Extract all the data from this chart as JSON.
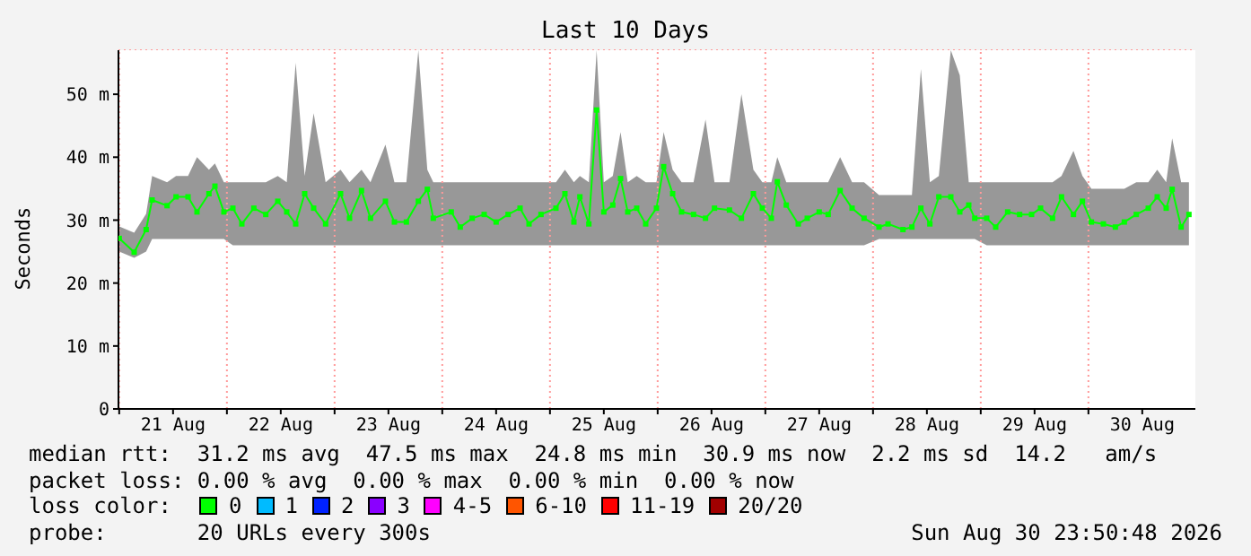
{
  "chart_data": {
    "type": "line",
    "title": "Last 10 Days",
    "ylabel": "Seconds",
    "xlim": [
      "2026-08-20T23:50",
      "2026-08-30T23:50"
    ],
    "xticks": [
      {
        "value": "2026-08-21T00:00",
        "label": null
      },
      {
        "value": "2026-08-21T12:00",
        "label": "21 Aug"
      },
      {
        "value": "2026-08-22T00:00",
        "label": null
      },
      {
        "value": "2026-08-22T12:00",
        "label": "22 Aug"
      },
      {
        "value": "2026-08-23T00:00",
        "label": null
      },
      {
        "value": "2026-08-23T12:00",
        "label": "23 Aug"
      },
      {
        "value": "2026-08-24T00:00",
        "label": null
      },
      {
        "value": "2026-08-24T12:00",
        "label": "24 Aug"
      },
      {
        "value": "2026-08-25T00:00",
        "label": null
      },
      {
        "value": "2026-08-25T12:00",
        "label": "25 Aug"
      },
      {
        "value": "2026-08-26T00:00",
        "label": null
      },
      {
        "value": "2026-08-26T12:00",
        "label": "26 Aug"
      },
      {
        "value": "2026-08-27T00:00",
        "label": null
      },
      {
        "value": "2026-08-27T12:00",
        "label": "27 Aug"
      },
      {
        "value": "2026-08-28T00:00",
        "label": null
      },
      {
        "value": "2026-08-28T12:00",
        "label": "28 Aug"
      },
      {
        "value": "2026-08-29T00:00",
        "label": null
      },
      {
        "value": "2026-08-29T12:00",
        "label": "29 Aug"
      },
      {
        "value": "2026-08-30T00:00",
        "label": null
      },
      {
        "value": "2026-08-30T12:00",
        "label": "30 Aug"
      }
    ],
    "ylim": [
      0,
      57
    ],
    "yticks": [
      0,
      {
        "value": 10,
        "label": "10 m"
      },
      {
        "value": 20,
        "label": "20 m"
      },
      {
        "value": 30,
        "label": "30 m"
      },
      {
        "value": 40,
        "label": "40 m"
      },
      {
        "value": 50,
        "label": "50 m"
      }
    ],
    "grid": true,
    "legend": "bottom",
    "legend_title": "loss color:",
    "marker": "square",
    "x": [
      "2026-08-21T00:00",
      "2026-08-21T03:20",
      "2026-08-21T06:00",
      "2026-08-21T07:20",
      "2026-08-21T10:40",
      "2026-08-21T12:40",
      "2026-08-21T15:20",
      "2026-08-21T17:20",
      "2026-08-21T20:00",
      "2026-08-21T21:20",
      "2026-08-21T23:20",
      "2026-08-22T01:20",
      "2026-08-22T03:20",
      "2026-08-22T06:00",
      "2026-08-22T08:40",
      "2026-08-22T11:20",
      "2026-08-22T13:20",
      "2026-08-22T15:20",
      "2026-08-22T17:20",
      "2026-08-22T19:20",
      "2026-08-22T22:00",
      "2026-08-23T01:20",
      "2026-08-23T03:20",
      "2026-08-23T06:00",
      "2026-08-23T08:00",
      "2026-08-23T11:20",
      "2026-08-23T13:20",
      "2026-08-23T16:00",
      "2026-08-23T18:40",
      "2026-08-23T20:40",
      "2026-08-23T22:00",
      "2026-08-24T02:00",
      "2026-08-24T04:00",
      "2026-08-24T06:40",
      "2026-08-24T09:20",
      "2026-08-24T12:00",
      "2026-08-24T14:40",
      "2026-08-24T17:20",
      "2026-08-24T19:20",
      "2026-08-24T22:00",
      "2026-08-25T01:20",
      "2026-08-25T03:20",
      "2026-08-25T05:20",
      "2026-08-25T06:40",
      "2026-08-25T08:40",
      "2026-08-25T10:24",
      "2026-08-25T12:00",
      "2026-08-25T14:00",
      "2026-08-25T15:44",
      "2026-08-25T17:20",
      "2026-08-25T19:20",
      "2026-08-25T21:20",
      "2026-08-25T23:44",
      "2026-08-26T01:20",
      "2026-08-26T03:20",
      "2026-08-26T05:20",
      "2026-08-26T08:00",
      "2026-08-26T10:40",
      "2026-08-26T12:40",
      "2026-08-26T16:00",
      "2026-08-26T18:40",
      "2026-08-26T21:20",
      "2026-08-26T23:20",
      "2026-08-27T01:20",
      "2026-08-27T02:40",
      "2026-08-27T04:40",
      "2026-08-27T07:20",
      "2026-08-27T09:20",
      "2026-08-27T12:00",
      "2026-08-27T14:00",
      "2026-08-27T16:40",
      "2026-08-27T19:20",
      "2026-08-27T22:00",
      "2026-08-28T01:20",
      "2026-08-28T03:20",
      "2026-08-28T06:40",
      "2026-08-28T08:40",
      "2026-08-28T10:40",
      "2026-08-28T12:40",
      "2026-08-28T14:40",
      "2026-08-28T17:20",
      "2026-08-28T19:20",
      "2026-08-28T21:20",
      "2026-08-28T22:40",
      "2026-08-29T01:20",
      "2026-08-29T03:20",
      "2026-08-29T06:00",
      "2026-08-29T08:40",
      "2026-08-29T11:20",
      "2026-08-29T13:20",
      "2026-08-29T16:00",
      "2026-08-29T18:00",
      "2026-08-29T20:40",
      "2026-08-29T22:40",
      "2026-08-30T00:40",
      "2026-08-30T03:20",
      "2026-08-30T06:00",
      "2026-08-30T08:00",
      "2026-08-30T10:40",
      "2026-08-30T13:20",
      "2026-08-30T15:20",
      "2026-08-30T17:20",
      "2026-08-30T18:40",
      "2026-08-30T20:40",
      "2026-08-30T22:24"
    ],
    "series": [
      {
        "name": "0",
        "color": "#00ff00",
        "values": [
          27.1,
          24.9,
          28.5,
          33.2,
          32.3,
          33.7,
          33.7,
          31.3,
          34.2,
          35.4,
          31.3,
          31.9,
          29.4,
          31.9,
          30.9,
          33,
          31.3,
          29.4,
          34.2,
          31.9,
          29.4,
          34.2,
          30.3,
          34.7,
          30.3,
          33,
          29.7,
          29.7,
          33,
          34.9,
          30.3,
          31.3,
          28.9,
          30.3,
          30.9,
          29.7,
          30.9,
          31.9,
          29.4,
          30.9,
          31.9,
          34.2,
          29.7,
          33.7,
          29.4,
          47.5,
          31.3,
          32.4,
          36.6,
          31.3,
          31.9,
          29.4,
          31.9,
          38.5,
          34.2,
          31.3,
          30.9,
          30.3,
          31.9,
          31.6,
          30.3,
          34.2,
          31.9,
          30.3,
          36.1,
          32.4,
          29.4,
          30.3,
          31.3,
          30.9,
          34.7,
          31.9,
          30.3,
          28.9,
          29.4,
          28.5,
          28.9,
          31.9,
          29.4,
          33.7,
          33.7,
          31.3,
          32.4,
          30.3,
          30.3,
          28.9,
          31.3,
          30.9,
          30.9,
          31.9,
          30.3,
          33.7,
          30.9,
          33,
          29.7,
          29.4,
          28.9,
          29.7,
          30.9,
          31.9,
          33.7,
          31.9,
          34.9,
          28.9,
          30.9
        ],
        "lower": [
          25,
          24,
          25,
          27,
          27,
          27,
          27,
          27,
          27,
          27,
          27,
          26,
          26,
          26,
          26,
          26,
          26,
          26,
          26,
          26,
          26,
          26,
          26,
          26,
          26,
          26,
          26,
          26,
          26,
          26,
          26,
          26,
          26,
          26,
          26,
          26,
          26,
          26,
          26,
          26,
          26,
          26,
          26,
          26,
          26,
          26,
          26,
          26,
          26,
          26,
          26,
          26,
          26,
          26,
          26,
          26,
          26,
          26,
          26,
          26,
          26,
          26,
          26,
          26,
          26,
          26,
          26,
          26,
          26,
          26,
          26,
          26,
          26,
          27,
          27,
          27,
          27,
          27,
          27,
          27,
          27,
          27,
          27,
          27,
          26,
          26,
          26,
          26,
          26,
          26,
          26,
          26,
          26,
          26,
          26,
          26,
          26,
          26,
          26,
          26,
          26,
          26,
          26,
          26,
          26
        ],
        "upper": [
          29,
          28,
          31,
          37,
          36,
          37,
          37,
          40,
          38,
          39,
          36,
          36,
          36,
          36,
          36,
          37,
          36,
          55,
          37,
          47,
          36,
          38,
          36,
          38,
          36,
          42,
          36,
          36,
          57,
          38,
          36,
          36,
          36,
          36,
          36,
          36,
          36,
          36,
          36,
          36,
          36,
          38,
          36,
          37,
          36,
          57,
          36,
          37,
          44,
          36,
          37,
          36,
          36,
          44,
          38,
          36,
          36,
          46,
          36,
          36,
          50,
          38,
          36,
          36,
          40,
          36,
          36,
          36,
          36,
          36,
          40,
          36,
          36,
          34,
          34,
          34,
          34,
          54,
          36,
          37,
          57,
          53,
          36,
          36,
          36,
          36,
          36,
          36,
          36,
          36,
          36,
          37,
          41,
          37,
          35,
          35,
          35,
          35,
          36,
          36,
          38,
          36,
          43,
          36,
          36
        ]
      },
      {
        "name": "1",
        "color": "#00bbff",
        "values": [
          null,
          null,
          null,
          null,
          null,
          null,
          null,
          null,
          null,
          null,
          null,
          null,
          null,
          null,
          null,
          null,
          null,
          null,
          null,
          null,
          null,
          null,
          null,
          null,
          null,
          null,
          null,
          null,
          null,
          null,
          null,
          null,
          null,
          null,
          null,
          null,
          null,
          null,
          null,
          null,
          null,
          null,
          null,
          null,
          null,
          null,
          null,
          null,
          null,
          null,
          null,
          null,
          null,
          null,
          null,
          null,
          null,
          null,
          null,
          null,
          null,
          null,
          null,
          null,
          null,
          null,
          null,
          null,
          null,
          null,
          null,
          null,
          null,
          null,
          null,
          null,
          null,
          null,
          null,
          null,
          null,
          null,
          null,
          null,
          null,
          null,
          null,
          null,
          null,
          null,
          null,
          null,
          null,
          null,
          null,
          null,
          null,
          null,
          null,
          null,
          null,
          null,
          null,
          null,
          null
        ]
      },
      {
        "name": "2",
        "color": "#0022ff",
        "values": [
          null,
          null,
          null,
          null,
          null,
          null,
          null,
          null,
          null,
          null,
          null,
          null,
          null,
          null,
          null,
          null,
          null,
          null,
          null,
          null,
          null,
          null,
          null,
          null,
          null,
          null,
          null,
          null,
          null,
          null,
          null,
          null,
          null,
          null,
          null,
          null,
          null,
          null,
          null,
          null,
          null,
          null,
          null,
          null,
          null,
          null,
          null,
          null,
          null,
          null,
          null,
          null,
          null,
          null,
          null,
          null,
          null,
          null,
          null,
          null,
          null,
          null,
          null,
          null,
          null,
          null,
          null,
          null,
          null,
          null,
          null,
          null,
          null,
          null,
          null,
          null,
          null,
          null,
          null,
          null,
          null,
          null,
          null,
          null,
          null,
          null,
          null,
          null,
          null,
          null,
          null,
          null,
          null,
          null,
          null,
          null,
          null,
          null,
          null,
          null,
          null,
          null,
          null,
          null,
          null
        ]
      },
      {
        "name": "3",
        "color": "#8a00ff",
        "values": [
          null,
          null,
          null,
          null,
          null,
          null,
          null,
          null,
          null,
          null,
          null,
          null,
          null,
          null,
          null,
          null,
          null,
          null,
          null,
          null,
          null,
          null,
          null,
          null,
          null,
          null,
          null,
          null,
          null,
          null,
          null,
          null,
          null,
          null,
          null,
          null,
          null,
          null,
          null,
          null,
          null,
          null,
          null,
          null,
          null,
          null,
          null,
          null,
          null,
          null,
          null,
          null,
          null,
          null,
          null,
          null,
          null,
          null,
          null,
          null,
          null,
          null,
          null,
          null,
          null,
          null,
          null,
          null,
          null,
          null,
          null,
          null,
          null,
          null,
          null,
          null,
          null,
          null,
          null,
          null,
          null,
          null,
          null,
          null,
          null,
          null,
          null,
          null,
          null,
          null,
          null,
          null,
          null,
          null,
          null,
          null,
          null,
          null,
          null,
          null,
          null,
          null,
          null,
          null,
          null
        ]
      },
      {
        "name": "4-5",
        "color": "#ff00ff",
        "values": [
          null,
          null,
          null,
          null,
          null,
          null,
          null,
          null,
          null,
          null,
          null,
          null,
          null,
          null,
          null,
          null,
          null,
          null,
          null,
          null,
          null,
          null,
          null,
          null,
          null,
          null,
          null,
          null,
          null,
          null,
          null,
          null,
          null,
          null,
          null,
          null,
          null,
          null,
          null,
          null,
          null,
          null,
          null,
          null,
          null,
          null,
          null,
          null,
          null,
          null,
          null,
          null,
          null,
          null,
          null,
          null,
          null,
          null,
          null,
          null,
          null,
          null,
          null,
          null,
          null,
          null,
          null,
          null,
          null,
          null,
          null,
          null,
          null,
          null,
          null,
          null,
          null,
          null,
          null,
          null,
          null,
          null,
          null,
          null,
          null,
          null,
          null,
          null,
          null,
          null,
          null,
          null,
          null,
          null,
          null,
          null,
          null,
          null,
          null,
          null,
          null,
          null,
          null,
          null,
          null
        ]
      },
      {
        "name": "6-10",
        "color": "#ff5500",
        "values": [
          null,
          null,
          null,
          null,
          null,
          null,
          null,
          null,
          null,
          null,
          null,
          null,
          null,
          null,
          null,
          null,
          null,
          null,
          null,
          null,
          null,
          null,
          null,
          null,
          null,
          null,
          null,
          null,
          null,
          null,
          null,
          null,
          null,
          null,
          null,
          null,
          null,
          null,
          null,
          null,
          null,
          null,
          null,
          null,
          null,
          null,
          null,
          null,
          null,
          null,
          null,
          null,
          null,
          null,
          null,
          null,
          null,
          null,
          null,
          null,
          null,
          null,
          null,
          null,
          null,
          null,
          null,
          null,
          null,
          null,
          null,
          null,
          null,
          null,
          null,
          null,
          null,
          null,
          null,
          null,
          null,
          null,
          null,
          null,
          null,
          null,
          null,
          null,
          null,
          null,
          null,
          null,
          null,
          null,
          null,
          null,
          null,
          null,
          null,
          null,
          null,
          null,
          null,
          null,
          null
        ]
      },
      {
        "name": "11-19",
        "color": "#ff0000",
        "values": [
          null,
          null,
          null,
          null,
          null,
          null,
          null,
          null,
          null,
          null,
          null,
          null,
          null,
          null,
          null,
          null,
          null,
          null,
          null,
          null,
          null,
          null,
          null,
          null,
          null,
          null,
          null,
          null,
          null,
          null,
          null,
          null,
          null,
          null,
          null,
          null,
          null,
          null,
          null,
          null,
          null,
          null,
          null,
          null,
          null,
          null,
          null,
          null,
          null,
          null,
          null,
          null,
          null,
          null,
          null,
          null,
          null,
          null,
          null,
          null,
          null,
          null,
          null,
          null,
          null,
          null,
          null,
          null,
          null,
          null,
          null,
          null,
          null,
          null,
          null,
          null,
          null,
          null,
          null,
          null,
          null,
          null,
          null,
          null,
          null,
          null,
          null,
          null,
          null,
          null,
          null,
          null,
          null,
          null,
          null,
          null,
          null,
          null,
          null,
          null,
          null,
          null,
          null,
          null,
          null
        ]
      },
      {
        "name": "20/20",
        "color": "#a10000",
        "values": [
          null,
          null,
          null,
          null,
          null,
          null,
          null,
          null,
          null,
          null,
          null,
          null,
          null,
          null,
          null,
          null,
          null,
          null,
          null,
          null,
          null,
          null,
          null,
          null,
          null,
          null,
          null,
          null,
          null,
          null,
          null,
          null,
          null,
          null,
          null,
          null,
          null,
          null,
          null,
          null,
          null,
          null,
          null,
          null,
          null,
          null,
          null,
          null,
          null,
          null,
          null,
          null,
          null,
          null,
          null,
          null,
          null,
          null,
          null,
          null,
          null,
          null,
          null,
          null,
          null,
          null,
          null,
          null,
          null,
          null,
          null,
          null,
          null,
          null,
          null,
          null,
          null,
          null,
          null,
          null,
          null,
          null,
          null,
          null,
          null,
          null,
          null,
          null,
          null,
          null,
          null,
          null,
          null,
          null,
          null,
          null,
          null,
          null,
          null,
          null,
          null,
          null,
          null,
          null,
          null
        ]
      }
    ],
    "annotations": [
      "median rtt:  31.2 ms avg  47.5 ms max  24.8 ms min  30.9 ms now  2.2 ms sd  14.2   am/s",
      "packet loss: 0.00 % avg  0.00 % max  0.00 % min  0.00 % now",
      "probe:       20 URLs every 300s",
      "Sun Aug 30 23:50:48 2026"
    ]
  }
}
